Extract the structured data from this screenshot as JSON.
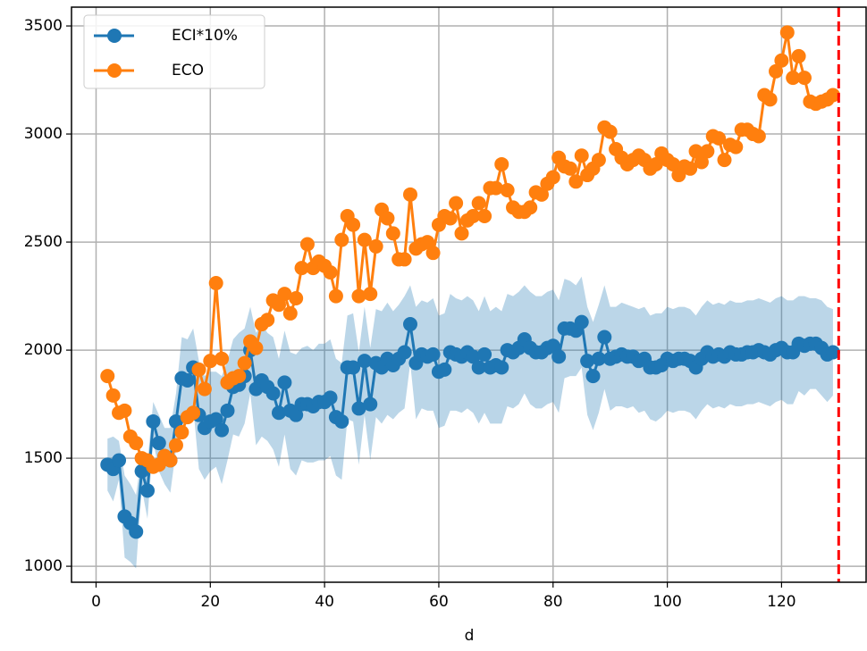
{
  "chart_data": {
    "type": "line",
    "xlabel": "d",
    "x": [
      2,
      3,
      4,
      5,
      6,
      7,
      8,
      9,
      10,
      11,
      12,
      13,
      14,
      15,
      16,
      17,
      18,
      19,
      20,
      21,
      22,
      23,
      24,
      25,
      26,
      27,
      28,
      29,
      30,
      31,
      32,
      33,
      34,
      35,
      36,
      37,
      38,
      39,
      40,
      41,
      42,
      43,
      44,
      45,
      46,
      47,
      48,
      49,
      50,
      51,
      52,
      53,
      54,
      55,
      56,
      57,
      58,
      59,
      60,
      61,
      62,
      63,
      64,
      65,
      66,
      67,
      68,
      69,
      70,
      71,
      72,
      73,
      74,
      75,
      76,
      77,
      78,
      79,
      80,
      81,
      82,
      83,
      84,
      85,
      86,
      87,
      88,
      89,
      90,
      91,
      92,
      93,
      94,
      95,
      96,
      97,
      98,
      99,
      100,
      101,
      102,
      103,
      104,
      105,
      106,
      107,
      108,
      109,
      110,
      111,
      112,
      113,
      114,
      115,
      116,
      117,
      118,
      119,
      120,
      121,
      122,
      123,
      124,
      125,
      126,
      127,
      128,
      129
    ],
    "series": [
      {
        "name": "ECI*10%",
        "color": "#1f77b4",
        "values": [
          1470,
          1450,
          1490,
          1230,
          1200,
          1160,
          1440,
          1350,
          1670,
          1570,
          1510,
          1490,
          1670,
          1870,
          1860,
          1920,
          1700,
          1640,
          1670,
          1680,
          1630,
          1720,
          1830,
          1840,
          1880,
          2000,
          1820,
          1860,
          1830,
          1800,
          1710,
          1850,
          1720,
          1700,
          1750,
          1750,
          1740,
          1760,
          1760,
          1780,
          1690,
          1670,
          1920,
          1920,
          1730,
          1950,
          1750,
          1940,
          1920,
          1960,
          1930,
          1960,
          1990,
          2120,
          1940,
          1980,
          1970,
          1980,
          1900,
          1910,
          1990,
          1980,
          1970,
          1990,
          1970,
          1920,
          1980,
          1920,
          1930,
          1920,
          2000,
          1990,
          2010,
          2050,
          2010,
          1990,
          1990,
          2010,
          2020,
          1970,
          2100,
          2100,
          2090,
          2130,
          1950,
          1880,
          1960,
          2060,
          1960,
          1970,
          1980,
          1970,
          1970,
          1950,
          1960,
          1920,
          1920,
          1930,
          1960,
          1950,
          1960,
          1960,
          1950,
          1920,
          1960,
          1990,
          1970,
          1980,
          1970,
          1990,
          1980,
          1980,
          1990,
          1990,
          2000,
          1990,
          1980,
          2000,
          2010,
          1990,
          1990,
          2030,
          2020,
          2030,
          2030,
          2010,
          1980,
          1990
        ],
        "band_upper": [
          1590,
          1600,
          1580,
          1420,
          1380,
          1330,
          1520,
          1480,
          1760,
          1700,
          1640,
          1640,
          1800,
          2060,
          2050,
          2100,
          1950,
          1880,
          1900,
          1900,
          1880,
          1950,
          2050,
          2080,
          2100,
          2200,
          2080,
          2120,
          2080,
          2060,
          1960,
          2090,
          1990,
          1980,
          2010,
          2020,
          2000,
          2030,
          2030,
          2050,
          1960,
          1940,
          2160,
          2170,
          1990,
          2200,
          2010,
          2190,
          2180,
          2220,
          2180,
          2210,
          2250,
          2300,
          2200,
          2230,
          2220,
          2240,
          2160,
          2170,
          2260,
          2240,
          2230,
          2250,
          2230,
          2180,
          2250,
          2180,
          2200,
          2180,
          2260,
          2250,
          2270,
          2300,
          2270,
          2250,
          2250,
          2270,
          2280,
          2230,
          2330,
          2320,
          2300,
          2340,
          2200,
          2130,
          2210,
          2300,
          2200,
          2200,
          2220,
          2210,
          2200,
          2190,
          2200,
          2160,
          2170,
          2170,
          2200,
          2190,
          2200,
          2200,
          2190,
          2160,
          2200,
          2230,
          2210,
          2220,
          2210,
          2230,
          2220,
          2220,
          2230,
          2230,
          2240,
          2230,
          2220,
          2240,
          2250,
          2230,
          2230,
          2250,
          2250,
          2240,
          2240,
          2230,
          2200,
          2190
        ],
        "band_lower": [
          1350,
          1300,
          1400,
          1040,
          1020,
          990,
          1360,
          1220,
          1580,
          1440,
          1380,
          1340,
          1540,
          1680,
          1670,
          1740,
          1450,
          1400,
          1440,
          1460,
          1380,
          1490,
          1610,
          1600,
          1660,
          1800,
          1560,
          1600,
          1580,
          1540,
          1460,
          1610,
          1450,
          1420,
          1490,
          1480,
          1480,
          1490,
          1490,
          1510,
          1420,
          1400,
          1680,
          1670,
          1470,
          1700,
          1490,
          1690,
          1660,
          1700,
          1680,
          1710,
          1730,
          1940,
          1680,
          1730,
          1720,
          1720,
          1640,
          1650,
          1720,
          1720,
          1710,
          1730,
          1710,
          1660,
          1710,
          1660,
          1660,
          1660,
          1740,
          1730,
          1750,
          1800,
          1750,
          1730,
          1730,
          1750,
          1760,
          1710,
          1870,
          1880,
          1880,
          1920,
          1700,
          1630,
          1710,
          1820,
          1720,
          1740,
          1740,
          1730,
          1740,
          1710,
          1720,
          1680,
          1670,
          1690,
          1720,
          1710,
          1720,
          1720,
          1710,
          1680,
          1720,
          1750,
          1730,
          1740,
          1730,
          1750,
          1740,
          1740,
          1750,
          1750,
          1760,
          1750,
          1740,
          1760,
          1770,
          1750,
          1750,
          1810,
          1790,
          1820,
          1820,
          1790,
          1760,
          1790
        ]
      },
      {
        "name": "ECO",
        "color": "#ff7f0e",
        "values": [
          1880,
          1790,
          1710,
          1720,
          1600,
          1570,
          1500,
          1490,
          1460,
          1470,
          1510,
          1490,
          1560,
          1620,
          1690,
          1710,
          1910,
          1820,
          1950,
          2310,
          1960,
          1850,
          1870,
          1880,
          1940,
          2040,
          2010,
          2120,
          2140,
          2230,
          2210,
          2260,
          2170,
          2240,
          2380,
          2490,
          2380,
          2410,
          2390,
          2360,
          2250,
          2510,
          2620,
          2580,
          2250,
          2510,
          2260,
          2480,
          2650,
          2610,
          2540,
          2420,
          2420,
          2720,
          2470,
          2490,
          2500,
          2450,
          2580,
          2620,
          2610,
          2680,
          2540,
          2600,
          2620,
          2680,
          2620,
          2750,
          2750,
          2860,
          2740,
          2660,
          2640,
          2640,
          2660,
          2730,
          2720,
          2770,
          2800,
          2890,
          2850,
          2840,
          2780,
          2900,
          2810,
          2840,
          2880,
          3030,
          3010,
          2930,
          2890,
          2860,
          2880,
          2900,
          2880,
          2840,
          2860,
          2910,
          2880,
          2860,
          2810,
          2850,
          2840,
          2920,
          2870,
          2920,
          2990,
          2980,
          2880,
          2950,
          2940,
          3020,
          3020,
          3000,
          2990,
          3180,
          3160,
          3290,
          3340,
          3470,
          3260,
          3360,
          3260,
          3150,
          3140,
          3150,
          3160,
          3180
        ]
      }
    ],
    "vline": {
      "x": 130,
      "color": "#ff0000"
    },
    "xlim": [
      -4.3,
      134.8
    ],
    "xticks": [
      0,
      20,
      40,
      60,
      80,
      100,
      120
    ],
    "ylim": [
      926,
      3587
    ],
    "yticks": [
      1000,
      1500,
      2000,
      2500,
      3000,
      3500
    ],
    "grid": true,
    "legend": "upper left"
  }
}
